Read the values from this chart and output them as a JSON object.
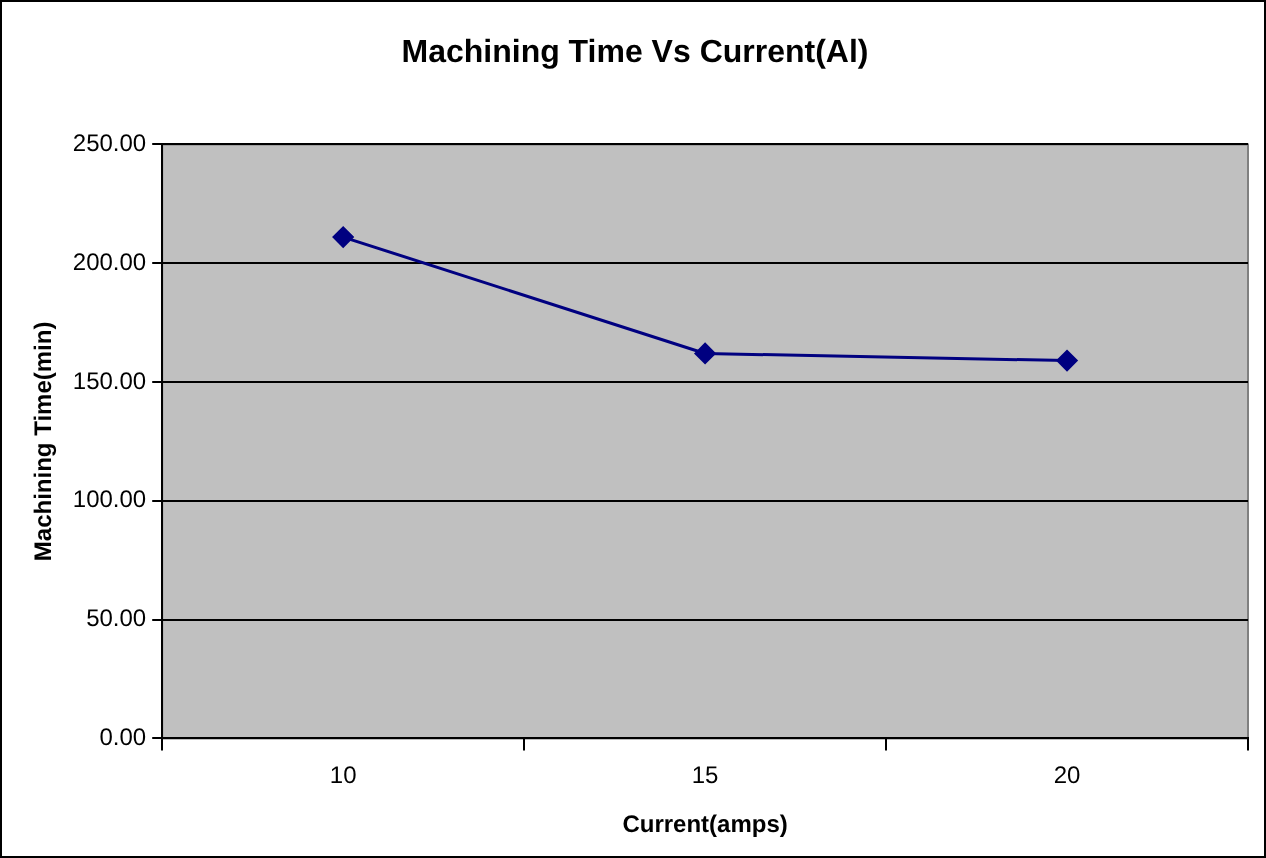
{
  "chart_data": {
    "type": "line",
    "title": "Machining Time Vs Current(Al)",
    "xlabel": "Current(amps)",
    "ylabel": "Machining Time(min)",
    "categories": [
      "10",
      "15",
      "20"
    ],
    "series": [
      {
        "color": "#000080",
        "values": [
          211,
          162,
          159
        ]
      }
    ],
    "ylim": [
      0,
      250
    ],
    "yticks": [
      {
        "value": 0,
        "label": "0.00"
      },
      {
        "value": 50,
        "label": "50.00"
      },
      {
        "value": 100,
        "label": "100.00"
      },
      {
        "value": 150,
        "label": "150.00"
      },
      {
        "value": 200,
        "label": "200.00"
      },
      {
        "value": 250,
        "label": "250.00"
      }
    ],
    "grid": "y",
    "legend": false,
    "marker": "diamond",
    "line_style": "solid"
  }
}
